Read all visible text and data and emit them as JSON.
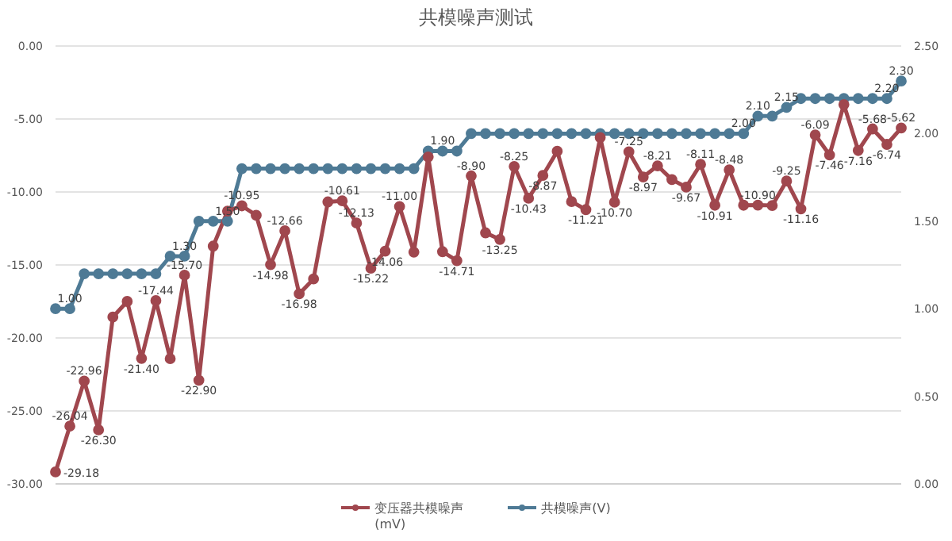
{
  "chart_data": {
    "type": "line",
    "title": "共模噪声测试",
    "categories": [
      null,
      null,
      null,
      null,
      null,
      null,
      null,
      null,
      null,
      null,
      null,
      null,
      null,
      null,
      null,
      null,
      null,
      null,
      null,
      null,
      null,
      null,
      null,
      null,
      null,
      null,
      null,
      null,
      null,
      null,
      null,
      null,
      null,
      null,
      null,
      null,
      null,
      null,
      null,
      null,
      null,
      null,
      null,
      null,
      null,
      null,
      null,
      null,
      null,
      null,
      null,
      null,
      null,
      null,
      null,
      null,
      null,
      null,
      null,
      null
    ],
    "series": [
      {
        "name": "变压器共模噪声(mV)",
        "color": "#a0474e",
        "values": [
          -29.18,
          -26.04,
          -22.96,
          -26.3,
          -18.57,
          -17.5,
          -21.4,
          -17.44,
          -21.42,
          -15.7,
          -22.9,
          -13.71,
          -11.31,
          -10.95,
          -11.6,
          -14.98,
          -12.66,
          -16.98,
          -15.96,
          -10.68,
          -10.61,
          -12.13,
          -15.22,
          -14.06,
          -11.0,
          -14.12,
          -7.6,
          -14.09,
          -14.71,
          -8.9,
          -12.8,
          -13.25,
          -8.25,
          -10.43,
          -8.87,
          -7.21,
          -10.66,
          -11.21,
          -6.27,
          -10.7,
          -7.25,
          -8.97,
          -8.21,
          -9.15,
          -9.67,
          -8.11,
          -10.91,
          -8.48,
          -10.91,
          -10.9,
          -10.93,
          -9.25,
          -11.16,
          -6.09,
          -7.46,
          -4.01,
          -7.16,
          -5.68,
          -6.74,
          -5.62
        ],
        "value_labels": [
          "-29.18",
          "-26.04",
          "-22.96",
          "-26.30",
          null,
          null,
          "-21.40",
          "-17.44",
          null,
          "-15.70",
          "-22.90",
          null,
          null,
          "-10.95",
          null,
          "-14.98",
          "-12.66",
          "-16.98",
          null,
          null,
          "-10.61",
          "-12.13",
          "-15.22",
          "-14.06",
          "-11.00",
          null,
          null,
          null,
          "-14.71",
          "-8.90",
          null,
          "-13.25",
          "-8.25",
          "-10.43",
          "-8.87",
          null,
          null,
          "-11.21",
          null,
          "-10.70",
          "-7.25",
          "-8.97",
          "-8.21",
          null,
          "-9.67",
          "-8.11",
          "-10.91",
          "-8.48",
          null,
          "-10.90",
          null,
          "-9.25",
          "-11.16",
          "-6.09",
          "-7.46",
          null,
          "-7.16",
          "-5.68",
          "-6.74",
          "-5.62"
        ]
      },
      {
        "name": "共模噪声(V)",
        "color": "#4e7a95",
        "axis": "y2",
        "values": [
          1.0,
          1.0,
          1.2,
          1.2,
          1.2,
          1.2,
          1.2,
          1.2,
          1.3,
          1.3,
          1.5,
          1.5,
          1.5,
          1.8,
          1.8,
          1.8,
          1.8,
          1.8,
          1.8,
          1.8,
          1.8,
          1.8,
          1.8,
          1.8,
          1.8,
          1.8,
          1.9,
          1.9,
          1.9,
          2.0,
          2.0,
          2.0,
          2.0,
          2.0,
          2.0,
          2.0,
          2.0,
          2.0,
          2.0,
          2.0,
          2.0,
          2.0,
          2.0,
          2.0,
          2.0,
          2.0,
          2.0,
          2.0,
          2.0,
          2.1,
          2.1,
          2.15,
          2.2,
          2.2,
          2.2,
          2.2,
          2.2,
          2.2,
          2.2,
          2.3
        ],
        "value_labels": [
          null,
          "1.00",
          null,
          null,
          null,
          null,
          null,
          null,
          null,
          "1.30",
          null,
          null,
          "1.50",
          null,
          null,
          null,
          null,
          null,
          null,
          null,
          null,
          null,
          null,
          null,
          null,
          null,
          null,
          "1.90",
          null,
          null,
          null,
          null,
          null,
          null,
          null,
          null,
          null,
          null,
          null,
          null,
          null,
          null,
          null,
          null,
          null,
          null,
          null,
          null,
          "2.00",
          "2.10",
          null,
          "2.15",
          null,
          null,
          null,
          null,
          null,
          null,
          "2.20",
          "2.30"
        ]
      }
    ],
    "ylim": [
      -30,
      0
    ],
    "yticks": [
      {
        "value": -30,
        "label": "-30.00"
      },
      {
        "value": -25,
        "label": "-25.00"
      },
      {
        "value": -20,
        "label": "-20.00"
      },
      {
        "value": -15,
        "label": "-15.00"
      },
      {
        "value": -10,
        "label": "-10.00"
      },
      {
        "value": -5,
        "label": "-5.00"
      },
      {
        "value": 0,
        "label": "0.00"
      }
    ],
    "y2lim": [
      0,
      2.5
    ],
    "y2ticks": [
      {
        "value": 0,
        "label": "0.00"
      },
      {
        "value": 0.5,
        "label": "0.50"
      },
      {
        "value": 1,
        "label": "1.00"
      },
      {
        "value": 1.5,
        "label": "1.50"
      },
      {
        "value": 2,
        "label": "2.00"
      },
      {
        "value": 2.5,
        "label": "2.50"
      }
    ],
    "grid": "y",
    "legend": "bottom",
    "marker": "circle",
    "line_style": "solid"
  }
}
